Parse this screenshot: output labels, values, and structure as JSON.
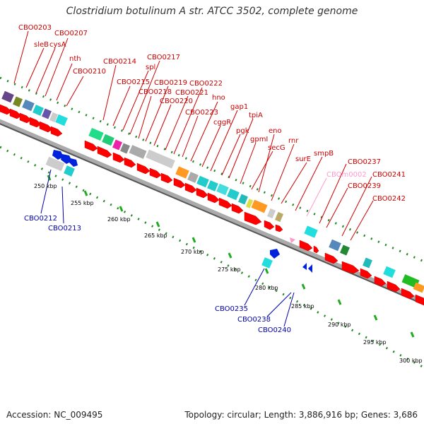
{
  "title": "Clostridium botulinum A str. ATCC 3502, complete genome",
  "footer": {
    "accession": "Accession: NC_009495",
    "summary": "Topology: circular; Length: 3,886,916 bp; Genes: 3,686"
  },
  "ruler_ticks": [
    "250 kbp",
    "255 kbp",
    "260 kbp",
    "265 kbp",
    "270 kbp",
    "275 kbp",
    "280 kbp",
    "285 kbp",
    "290 kbp",
    "295 kbp",
    "300 kbp"
  ],
  "top_labels": [
    "CBO0203",
    "sleB",
    "cysA",
    "CBO0207",
    "nth",
    "CBO0210",
    "CBO0214",
    "CBO0215",
    "spl",
    "CBO0217",
    "CBO0218",
    "CBO0219",
    "CBO0220",
    "CBO0221",
    "CBO0222",
    "CBO0223",
    "hno",
    "cggR",
    "gap1",
    "pgk",
    "tpiA",
    "gpmI",
    "secG",
    "eno",
    "rnr",
    "surE",
    "smpB",
    "CBO0237",
    "CBO0239",
    "CBO0241",
    "CBO0242"
  ],
  "pink_label": "CBOm0002",
  "bottom_labels": [
    "CBO0212",
    "CBO0213",
    "CBO0235",
    "CBO0238",
    "CBO0240"
  ]
}
